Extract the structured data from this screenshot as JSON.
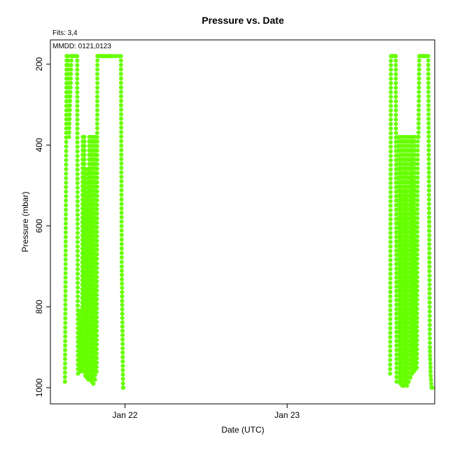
{
  "chart_data": {
    "type": "scatter",
    "title": "Pressure  vs. Date",
    "xlabel": "Date (UTC)",
    "ylabel": "Pressure (mbar)",
    "annotations": {
      "fits": "Fits: 3,4",
      "mmdd": "MMDD: 0121,0123"
    },
    "x_axis": {
      "unit": "days since Jan 22 00:00 UTC",
      "xlim": [
        -0.46,
        1.91
      ],
      "ticks": [
        {
          "value": 0,
          "label": "Jan 22"
        },
        {
          "value": 1,
          "label": "Jan 23"
        }
      ]
    },
    "y_axis": {
      "reversed": true,
      "ylim": [
        1040,
        140
      ],
      "ticks": [
        200,
        400,
        600,
        800,
        1000
      ]
    },
    "grid": false,
    "legend": "none",
    "series": [
      {
        "color": "#66ff00",
        "x": [
          -0.37,
          -0.36,
          -0.35,
          -0.345,
          -0.33,
          -0.32,
          -0.31,
          -0.295,
          -0.29,
          -0.28,
          -0.275,
          -0.27,
          -0.265,
          -0.26,
          -0.255,
          -0.25,
          -0.245,
          -0.24,
          -0.235,
          -0.23,
          -0.225,
          -0.22,
          -0.215,
          -0.21,
          -0.205,
          -0.2,
          -0.195,
          -0.19,
          -0.185,
          -0.18,
          -0.175,
          -0.17,
          -0.165,
          -0.16,
          -0.155,
          -0.15,
          -0.14,
          -0.13,
          -0.12,
          -0.11,
          -0.1,
          -0.09,
          -0.08,
          -0.06,
          -0.04,
          -0.025,
          -0.02,
          -0.015,
          -0.012,
          -0.01
        ],
        "y": [
          985,
          180,
          180,
          380,
          180,
          180,
          180,
          180,
          965,
          810,
          960,
          810,
          955,
          380,
          960,
          380,
          970,
          460,
          975,
          460,
          980,
          380,
          980,
          380,
          985,
          380,
          990,
          380,
          980,
          380,
          960,
          180,
          180,
          180,
          180,
          180,
          180,
          180,
          180,
          180,
          180,
          180,
          180,
          180,
          180,
          180,
          700,
          870,
          1000,
          1000
        ]
      },
      {
        "color": "#66ff00",
        "x": [
          1.635,
          1.64,
          1.645,
          1.65,
          1.655,
          1.665,
          1.67,
          1.675,
          1.685,
          1.69,
          1.695,
          1.7,
          1.705,
          1.71,
          1.715,
          1.72,
          1.725,
          1.73,
          1.735,
          1.74,
          1.745,
          1.75,
          1.755,
          1.76,
          1.765,
          1.77,
          1.775,
          1.78,
          1.785,
          1.79,
          1.8,
          1.805,
          1.81,
          1.815,
          1.82,
          1.825,
          1.83,
          1.835,
          1.84,
          1.845,
          1.85,
          1.86,
          1.87,
          1.88,
          1.885,
          1.89,
          1.895
        ],
        "y": [
          965,
          180,
          180,
          180,
          180,
          180,
          180,
          985,
          380,
          985,
          380,
          990,
          380,
          995,
          380,
          995,
          380,
          990,
          380,
          995,
          380,
          985,
          380,
          975,
          380,
          965,
          380,
          960,
          380,
          955,
          950,
          380,
          380,
          180,
          180,
          180,
          180,
          180,
          180,
          180,
          180,
          180,
          180,
          900,
          970,
          1000,
          1000
        ]
      }
    ]
  }
}
